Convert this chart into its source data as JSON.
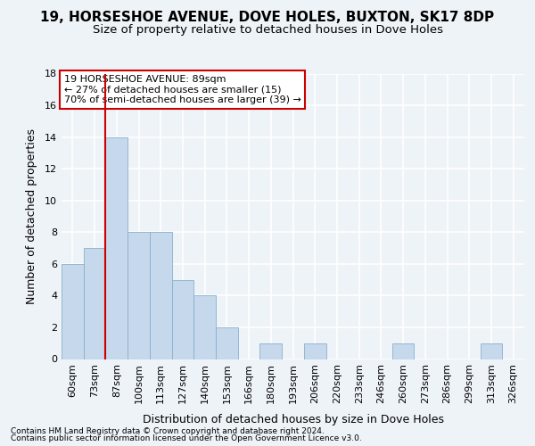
{
  "title1": "19, HORSESHOE AVENUE, DOVE HOLES, BUXTON, SK17 8DP",
  "title2": "Size of property relative to detached houses in Dove Holes",
  "xlabel": "Distribution of detached houses by size in Dove Holes",
  "ylabel": "Number of detached properties",
  "categories": [
    "60sqm",
    "73sqm",
    "87sqm",
    "100sqm",
    "113sqm",
    "127sqm",
    "140sqm",
    "153sqm",
    "166sqm",
    "180sqm",
    "193sqm",
    "206sqm",
    "220sqm",
    "233sqm",
    "246sqm",
    "260sqm",
    "273sqm",
    "286sqm",
    "299sqm",
    "313sqm",
    "326sqm"
  ],
  "values": [
    6,
    7,
    14,
    8,
    8,
    5,
    4,
    2,
    0,
    1,
    0,
    1,
    0,
    0,
    0,
    1,
    0,
    0,
    0,
    1,
    0
  ],
  "bar_color": "#c5d8ec",
  "bar_edgecolor": "#8ab0cc",
  "vline_color": "#cc0000",
  "vline_xidx": 2,
  "annotation_lines": [
    "19 HORSESHOE AVENUE: 89sqm",
    "← 27% of detached houses are smaller (15)",
    "70% of semi-detached houses are larger (39) →"
  ],
  "ylim_max": 18,
  "yticks": [
    0,
    2,
    4,
    6,
    8,
    10,
    12,
    14,
    16,
    18
  ],
  "footer1": "Contains HM Land Registry data © Crown copyright and database right 2024.",
  "footer2": "Contains public sector information licensed under the Open Government Licence v3.0.",
  "bg_color": "#eef3f8",
  "grid_color": "#ffffff",
  "title1_fontsize": 11,
  "title2_fontsize": 9.5,
  "axis_label_fontsize": 9,
  "tick_fontsize": 8,
  "annotation_fontsize": 8,
  "footer_fontsize": 6.5
}
